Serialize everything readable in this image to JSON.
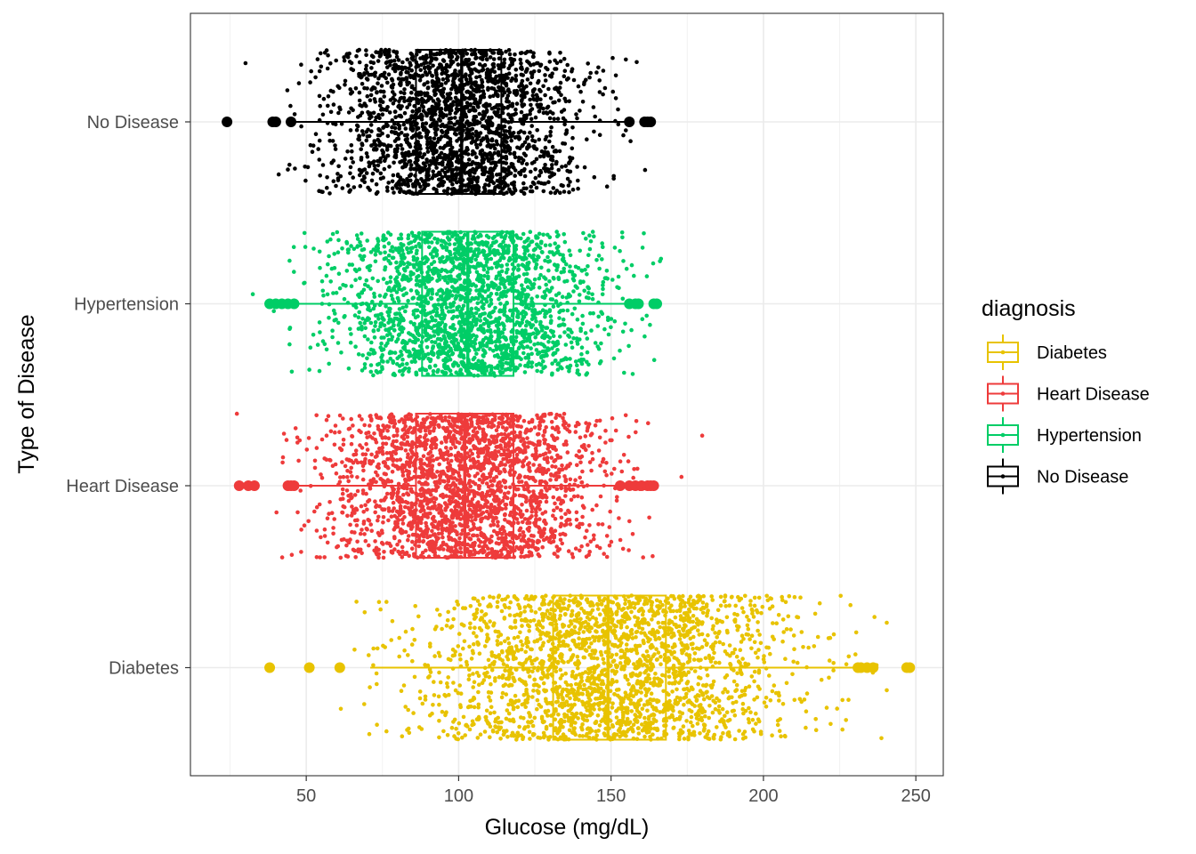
{
  "chart_data": {
    "type": "box-jitter",
    "orientation": "horizontal",
    "xlabel": "Glucose (mg/dL)",
    "ylabel": "Type of Disease",
    "xlim": [
      12,
      259
    ],
    "x_ticks": [
      50,
      100,
      150,
      200,
      250
    ],
    "x_tick_labels": [
      "50",
      "100",
      "150",
      "200",
      "250"
    ],
    "categories": [
      "No Disease",
      "Hypertension",
      "Heart Disease",
      "Diabetes"
    ],
    "grid": true,
    "legend": {
      "title": "diagnosis",
      "position": "right",
      "entries": [
        "Diabetes",
        "Heart Disease",
        "Hypertension",
        "No Disease"
      ]
    },
    "colors": {
      "Diabetes": "#e8c300",
      "Heart Disease": "#ee3b3b",
      "Hypertension": "#00cd66",
      "No Disease": "#000000"
    },
    "series": [
      {
        "name": "No Disease",
        "n_points": 2200,
        "distribution": {
          "mean": 100,
          "sd": 20
        },
        "box": {
          "whisker_low": 46,
          "q1": 86,
          "median": 101,
          "q3": 114,
          "whisker_high": 155
        },
        "outliers": [
          24,
          39,
          40,
          45,
          156,
          161,
          162,
          163
        ]
      },
      {
        "name": "Hypertension",
        "n_points": 2200,
        "distribution": {
          "mean": 103,
          "sd": 21
        },
        "box": {
          "whisker_low": 47,
          "q1": 88,
          "median": 103,
          "q3": 118,
          "whisker_high": 155
        },
        "outliers": [
          38,
          40,
          42,
          44,
          46,
          156,
          158,
          159,
          164,
          165
        ]
      },
      {
        "name": "Heart Disease",
        "n_points": 2400,
        "distribution": {
          "mean": 102,
          "sd": 22
        },
        "box": {
          "whisker_low": 47,
          "q1": 86,
          "median": 102,
          "q3": 118,
          "whisker_high": 152
        },
        "outliers": [
          28,
          31,
          33,
          44,
          45,
          46,
          153,
          156,
          158,
          160,
          162,
          163,
          164
        ]
      },
      {
        "name": "Diabetes",
        "n_points": 2400,
        "distribution": {
          "mean": 149,
          "sd": 30
        },
        "box": {
          "whisker_low": 71,
          "q1": 131,
          "median": 149,
          "q3": 168,
          "whisker_high": 230
        },
        "outliers": [
          38,
          51,
          61,
          231,
          232,
          234,
          236,
          247,
          248
        ]
      }
    ]
  }
}
